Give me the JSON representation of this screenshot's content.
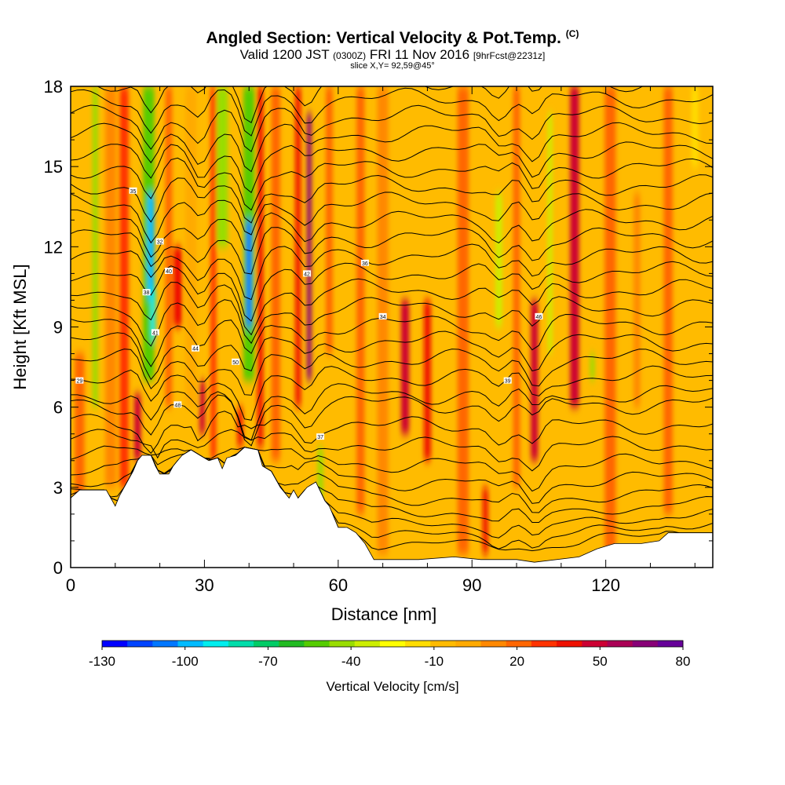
{
  "chart_data": {
    "type": "heatmap",
    "title": "Angled Section: Vertical Velocity & Pot.Temp.",
    "title_mark": "(C)",
    "subtitle": {
      "valid": "Valid 1200 JST",
      "utc": "(0300Z)",
      "date": "FRI 11 Nov 2016",
      "forecast": "[9hrFcst@2231z]"
    },
    "slice_label": "slice X,Y= 92,59@45°",
    "xlabel": "Distance [nm]",
    "ylabel": "Height [Kft MSL]",
    "xlim": [
      0,
      144
    ],
    "ylim": [
      0,
      18
    ],
    "x_ticks": [
      "0",
      "30",
      "60",
      "90",
      "120"
    ],
    "y_ticks": [
      "0",
      "3",
      "6",
      "9",
      "12",
      "15",
      "18"
    ],
    "colorbar": {
      "title": "Vertical Velocity [cm/s]",
      "range": [
        -130,
        80
      ],
      "labels": [
        "-130",
        "-100",
        "-70",
        "-40",
        "-10",
        "20",
        "50",
        "80"
      ],
      "colors": [
        "#0000ff",
        "#0044ff",
        "#0077ff",
        "#00bbff",
        "#00eeee",
        "#00ddaa",
        "#00cc66",
        "#22bb22",
        "#55cc00",
        "#99dd00",
        "#ccee00",
        "#ffff00",
        "#ffdd00",
        "#ffbb00",
        "#ffaa00",
        "#ff8800",
        "#ff6600",
        "#ff3300",
        "#ee1100",
        "#cc0033",
        "#aa0055",
        "#880077",
        "#660099"
      ]
    },
    "columns": [
      {
        "x": 2,
        "w": 2.2,
        "v": 25,
        "z0": 2,
        "z1": 8
      },
      {
        "x": 5.5,
        "w": 1.2,
        "v": -45,
        "z0": 6,
        "z1": 18
      },
      {
        "x": 9,
        "w": 2.5,
        "v": 15,
        "z0": 3,
        "z1": 18
      },
      {
        "x": 12,
        "w": 2.0,
        "v": 30,
        "z0": 3,
        "z1": 18
      },
      {
        "x": 15,
        "w": 1.5,
        "v": 50,
        "z0": 4,
        "z1": 6.5
      },
      {
        "x": 17.5,
        "w": 2.5,
        "v": -50,
        "z0": 7,
        "z1": 18
      },
      {
        "x": 18,
        "w": 1.5,
        "v": -100,
        "z0": 10,
        "z1": 14
      },
      {
        "x": 18.5,
        "w": 1.0,
        "v": -85,
        "z0": 8.5,
        "z1": 10.5
      },
      {
        "x": 22,
        "w": 1.5,
        "v": 20,
        "z0": 6,
        "z1": 18
      },
      {
        "x": 24,
        "w": 2.0,
        "v": 35,
        "z0": 9,
        "z1": 12
      },
      {
        "x": 27,
        "w": 2.5,
        "v": 0,
        "z0": 6,
        "z1": 18
      },
      {
        "x": 29.5,
        "w": 1.2,
        "v": 45,
        "z0": 5,
        "z1": 7
      },
      {
        "x": 32,
        "w": 1.2,
        "v": 30,
        "z0": 4,
        "z1": 18
      },
      {
        "x": 34,
        "w": 2.5,
        "v": -45,
        "z0": 12,
        "z1": 18
      },
      {
        "x": 38,
        "w": 1.2,
        "v": 40,
        "z0": 4.5,
        "z1": 6
      },
      {
        "x": 40,
        "w": 2.5,
        "v": -50,
        "z0": 7,
        "z1": 18
      },
      {
        "x": 40,
        "w": 1.3,
        "v": -110,
        "z0": 9,
        "z1": 13
      },
      {
        "x": 42.5,
        "w": 1.3,
        "v": 40,
        "z0": 4.5,
        "z1": 18
      },
      {
        "x": 46,
        "w": 2.0,
        "v": 25,
        "z0": 4,
        "z1": 18
      },
      {
        "x": 51,
        "w": 1.2,
        "v": 35,
        "z0": 6,
        "z1": 18
      },
      {
        "x": 53.5,
        "w": 1.0,
        "v": 65,
        "z0": 7,
        "z1": 17
      },
      {
        "x": 56,
        "w": 1.2,
        "v": -40,
        "z0": 2.5,
        "z1": 4.5
      },
      {
        "x": 58,
        "w": 1.5,
        "v": 20,
        "z0": 8,
        "z1": 18
      },
      {
        "x": 65,
        "w": 1.8,
        "v": 25,
        "z0": 2,
        "z1": 18
      },
      {
        "x": 70,
        "w": 2.5,
        "v": 15,
        "z0": 0.5,
        "z1": 18
      },
      {
        "x": 75,
        "w": 1.8,
        "v": 45,
        "z0": 5,
        "z1": 10
      },
      {
        "x": 80,
        "w": 1.5,
        "v": 40,
        "z0": 4,
        "z1": 10
      },
      {
        "x": 88,
        "w": 2.5,
        "v": 20,
        "z0": 0.5,
        "z1": 18
      },
      {
        "x": 93,
        "w": 1.2,
        "v": 35,
        "z0": 0.5,
        "z1": 3
      },
      {
        "x": 96,
        "w": 1.5,
        "v": -35,
        "z0": 9,
        "z1": 14
      },
      {
        "x": 100,
        "w": 1.5,
        "v": 25,
        "z0": 3,
        "z1": 18
      },
      {
        "x": 104,
        "w": 1.6,
        "v": 45,
        "z0": 4,
        "z1": 10
      },
      {
        "x": 107.5,
        "w": 1.0,
        "v": -35,
        "z0": 8,
        "z1": 17
      },
      {
        "x": 113,
        "w": 2.0,
        "v": 45,
        "z0": 6,
        "z1": 18
      },
      {
        "x": 117,
        "w": 1.0,
        "v": -40,
        "z0": 7,
        "z1": 8
      },
      {
        "x": 121,
        "w": 2.5,
        "v": 20,
        "z0": 0.5,
        "z1": 18
      },
      {
        "x": 127,
        "w": 1.5,
        "v": 15,
        "z0": 6,
        "z1": 14
      },
      {
        "x": 134,
        "w": 2.0,
        "v": 25,
        "z0": 2,
        "z1": 18
      },
      {
        "x": 140,
        "w": 1.5,
        "v": -20,
        "z0": 15,
        "z1": 18
      }
    ],
    "terrain": [
      [
        0,
        2.6
      ],
      [
        2,
        2.9
      ],
      [
        5,
        2.9
      ],
      [
        8,
        2.9
      ],
      [
        10,
        2.3
      ],
      [
        11,
        2.7
      ],
      [
        12,
        3.0
      ],
      [
        14,
        3.6
      ],
      [
        15,
        4.0
      ],
      [
        16,
        4.2
      ],
      [
        18,
        4.2
      ],
      [
        19,
        3.8
      ],
      [
        20,
        3.5
      ],
      [
        22,
        3.5
      ],
      [
        23,
        3.8
      ],
      [
        24,
        4.0
      ],
      [
        25,
        4.2
      ],
      [
        27,
        4.4
      ],
      [
        29,
        4.2
      ],
      [
        31,
        4.0
      ],
      [
        33,
        4.1
      ],
      [
        34,
        3.7
      ],
      [
        35,
        4.1
      ],
      [
        37,
        4.2
      ],
      [
        39,
        4.5
      ],
      [
        42,
        4.4
      ],
      [
        43,
        3.8
      ],
      [
        45,
        3.6
      ],
      [
        47,
        3.0
      ],
      [
        48,
        2.8
      ],
      [
        49,
        2.6
      ],
      [
        50,
        2.9
      ],
      [
        51,
        2.6
      ],
      [
        52,
        2.8
      ],
      [
        53,
        3.0
      ],
      [
        55,
        3.2
      ],
      [
        57,
        2.5
      ],
      [
        58,
        2.3
      ],
      [
        60,
        1.5
      ],
      [
        62,
        1.5
      ],
      [
        64,
        1.3
      ],
      [
        66,
        0.9
      ],
      [
        67,
        0.6
      ],
      [
        68,
        0.3
      ],
      [
        78,
        0.3
      ],
      [
        86,
        0.4
      ],
      [
        92,
        0.3
      ],
      [
        100,
        0.3
      ],
      [
        104,
        0.2
      ],
      [
        114,
        0.4
      ],
      [
        118,
        0.7
      ],
      [
        122,
        0.9
      ],
      [
        128,
        0.9
      ],
      [
        132,
        1.0
      ],
      [
        134,
        1.3
      ],
      [
        144,
        1.3
      ]
    ],
    "isentropes": [
      [
        0,
        [
          0.0,
          0.0,
          0.2,
          0.3,
          0.5,
          0.6,
          0.4,
          0.2,
          0.1,
          0.3,
          0.5,
          0.7,
          0.9,
          1.0,
          1.0,
          1.0
        ]
      ],
      [
        0.5,
        [
          0.0,
          0.1,
          0.3,
          0.4,
          0.5,
          0.5,
          0.3,
          0.2,
          0.1,
          0.2,
          0.3,
          0.5,
          0.6,
          0.7,
          0.7,
          0.7
        ]
      ],
      [
        1,
        [
          0.0,
          0.2,
          0.3,
          0.5,
          0.5,
          0.4,
          0.3,
          0.2,
          0.1,
          0.2,
          0.3,
          0.4,
          0.5,
          0.5,
          0.6,
          0.6
        ]
      ]
    ],
    "theta_labels": [
      "29",
      "35",
      "32",
      "40",
      "38",
      "41",
      "44",
      "48",
      "50",
      "37",
      "42",
      "36",
      "34",
      "39",
      "46"
    ]
  }
}
